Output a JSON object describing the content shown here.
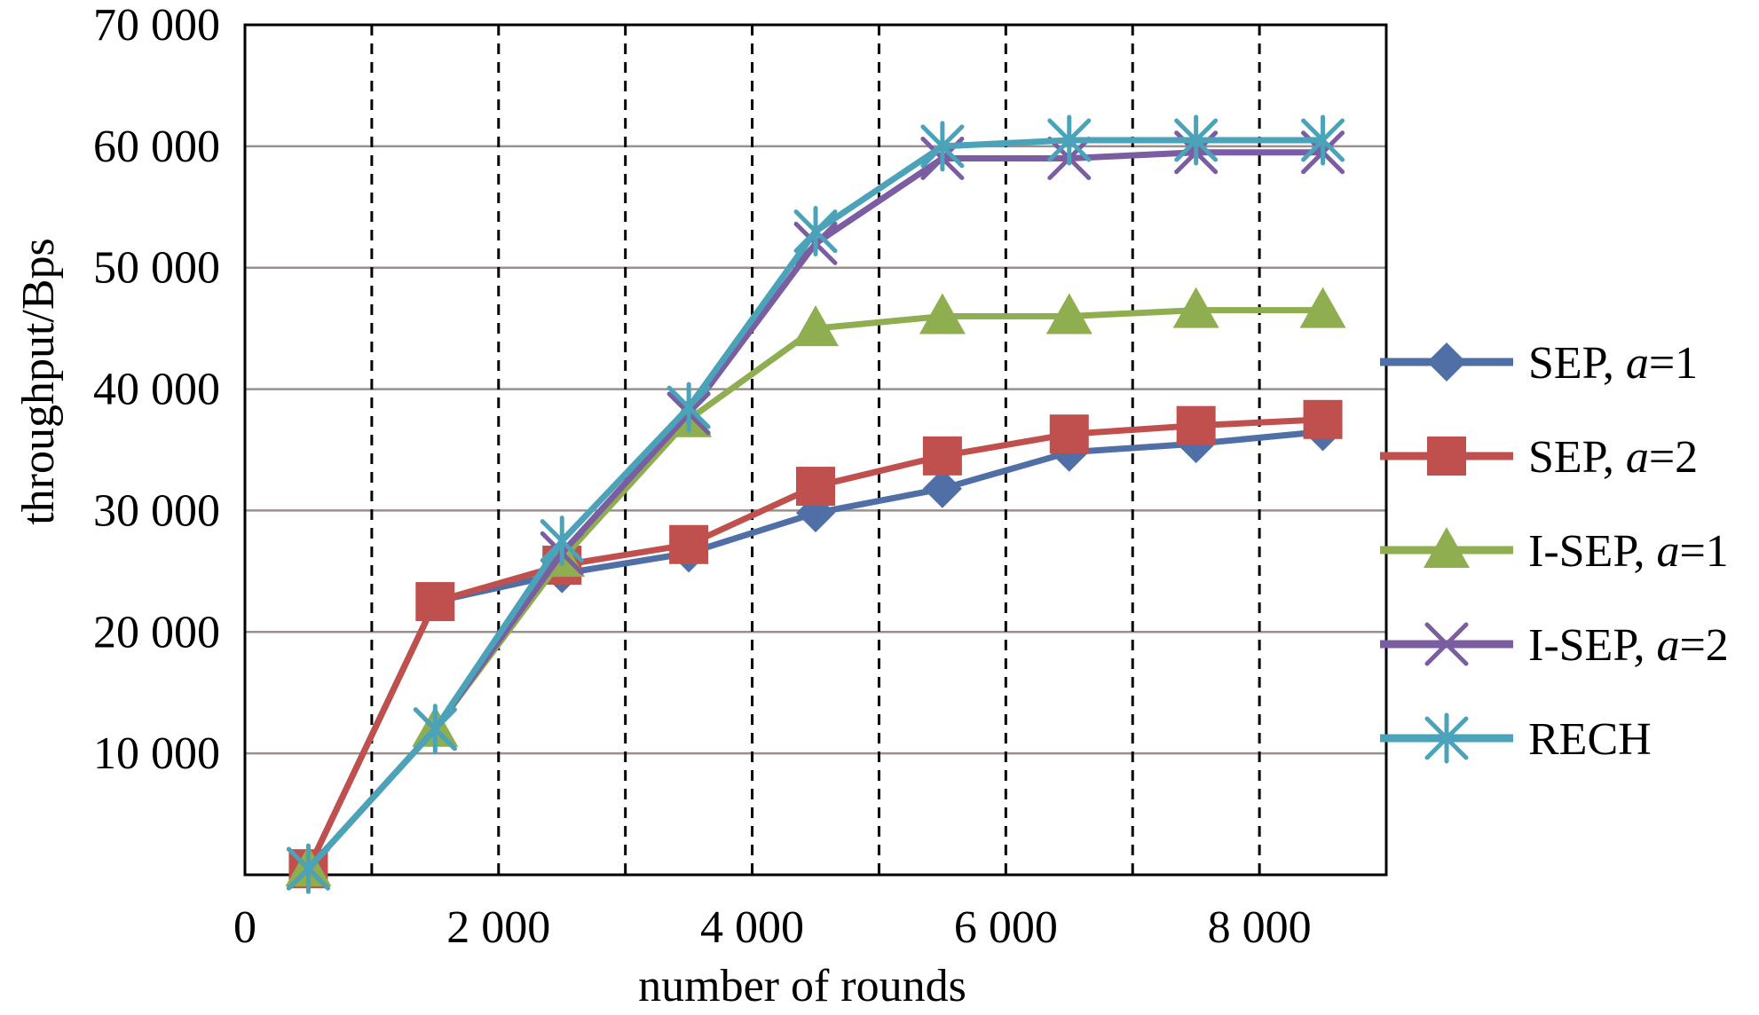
{
  "chart_data": {
    "type": "line",
    "title": "",
    "xlabel": "number of rounds",
    "ylabel": "throughput/Bps",
    "xlim": [
      0,
      9000
    ],
    "ylim": [
      0,
      70000
    ],
    "x_ticks": [
      0,
      2000,
      4000,
      6000,
      8000
    ],
    "x_tick_labels": [
      "0",
      "2 000",
      "4 000",
      "6 000",
      "8 000"
    ],
    "x_dashed_gridlines": [
      1000,
      2000,
      3000,
      4000,
      5000,
      6000,
      7000,
      8000
    ],
    "y_ticks": [
      10000,
      20000,
      30000,
      40000,
      50000,
      60000,
      70000
    ],
    "y_tick_labels": [
      "10 000",
      "20 000",
      "30 000",
      "40 000",
      "50 000",
      "60 000",
      "70 000"
    ],
    "grid": true,
    "legend_position": "right",
    "x": [
      500,
      1500,
      2500,
      3500,
      4500,
      5500,
      6500,
      7500,
      8500
    ],
    "series": [
      {
        "name": "SEP, a=1",
        "name_prefix": "SEP, ",
        "name_var": "a",
        "name_suffix": "=1",
        "color": "#4f6fa6",
        "marker": "diamond",
        "values": [
          500,
          22500,
          24800,
          26500,
          29800,
          31800,
          34800,
          35500,
          36500
        ]
      },
      {
        "name": "SEP, a=2",
        "name_prefix": "SEP, ",
        "name_var": "a",
        "name_suffix": "=2",
        "color": "#c0504d",
        "marker": "square",
        "values": [
          500,
          22500,
          25500,
          27200,
          32000,
          34500,
          36300,
          37000,
          37500
        ]
      },
      {
        "name": "I-SEP, a=1",
        "name_prefix": "I-SEP, ",
        "name_var": "a",
        "name_suffix": "=1",
        "color": "#8fae4f",
        "marker": "triangle",
        "values": [
          500,
          12000,
          26000,
          37500,
          45000,
          46000,
          46000,
          46500,
          46500
        ]
      },
      {
        "name": "I-SEP, a=2",
        "name_prefix": "I-SEP, ",
        "name_var": "a",
        "name_suffix": "=2",
        "color": "#7b5ea2",
        "marker": "x",
        "values": [
          500,
          12000,
          26500,
          38000,
          52000,
          59000,
          59000,
          59500,
          59500
        ]
      },
      {
        "name": "RECH",
        "name_prefix": "RECH",
        "name_var": "",
        "name_suffix": "",
        "color": "#4aa3b8",
        "marker": "star",
        "values": [
          500,
          12000,
          27500,
          38500,
          53000,
          60000,
          60500,
          60500,
          60500
        ]
      }
    ]
  }
}
